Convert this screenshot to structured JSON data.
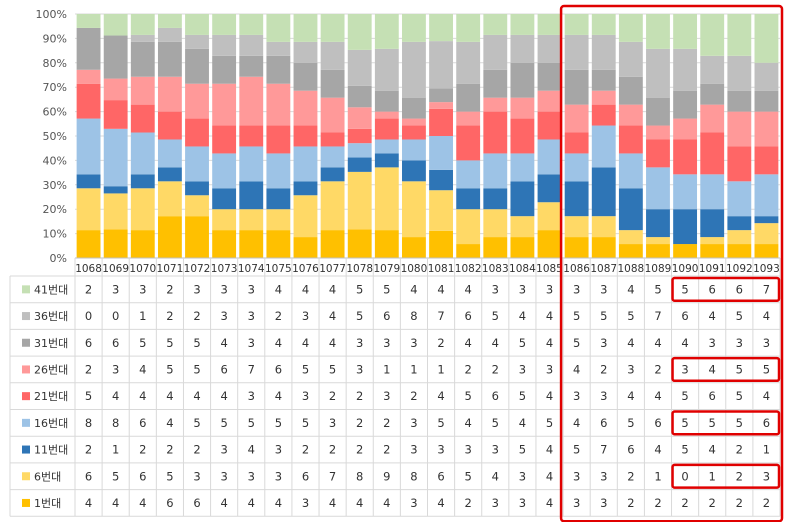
{
  "chart_data": {
    "type": "bar",
    "stacked": "percent",
    "title": "",
    "xlabel": "",
    "ylabel": "",
    "ylim": [
      0,
      100
    ],
    "y_ticks": [
      "0%",
      "10%",
      "20%",
      "30%",
      "40%",
      "50%",
      "60%",
      "70%",
      "80%",
      "90%",
      "100%"
    ],
    "grid": true,
    "legend": "data-table-left",
    "categories": [
      "1068",
      "1069",
      "1070",
      "1071",
      "1072",
      "1073",
      "1074",
      "1075",
      "1076",
      "1077",
      "1078",
      "1079",
      "1080",
      "1081",
      "1082",
      "1083",
      "1084",
      "1085",
      "1086",
      "1087",
      "1088",
      "1089",
      "1090",
      "1091",
      "1092",
      "1093"
    ],
    "series": [
      {
        "name": "1번대",
        "color": "#FFC000",
        "values": [
          4,
          4,
          4,
          6,
          6,
          4,
          4,
          4,
          3,
          4,
          4,
          4,
          3,
          4,
          2,
          3,
          3,
          4,
          3,
          3,
          2,
          2,
          2,
          2,
          2,
          2
        ]
      },
      {
        "name": "6번대",
        "color": "#FFD966",
        "values": [
          6,
          5,
          6,
          5,
          3,
          3,
          3,
          3,
          6,
          7,
          8,
          9,
          8,
          6,
          5,
          4,
          3,
          4,
          3,
          3,
          2,
          1,
          0,
          1,
          2,
          3
        ]
      },
      {
        "name": "11번대",
        "color": "#2E75B6",
        "values": [
          2,
          1,
          2,
          2,
          2,
          3,
          4,
          3,
          2,
          2,
          2,
          2,
          3,
          3,
          3,
          3,
          5,
          4,
          5,
          7,
          6,
          4,
          5,
          4,
          2,
          1
        ]
      },
      {
        "name": "16번대",
        "color": "#9DC3E6",
        "values": [
          8,
          8,
          6,
          4,
          5,
          5,
          5,
          5,
          5,
          3,
          2,
          2,
          3,
          5,
          4,
          5,
          4,
          5,
          4,
          6,
          5,
          6,
          5,
          5,
          5,
          6
        ]
      },
      {
        "name": "21번대",
        "color": "#FF6666",
        "values": [
          5,
          4,
          4,
          4,
          4,
          4,
          3,
          4,
          3,
          2,
          2,
          3,
          2,
          4,
          5,
          6,
          5,
          4,
          3,
          3,
          4,
          4,
          5,
          6,
          5,
          4
        ]
      },
      {
        "name": "26번대",
        "color": "#FF9999",
        "values": [
          2,
          3,
          4,
          5,
          5,
          6,
          7,
          6,
          5,
          5,
          3,
          1,
          1,
          1,
          2,
          2,
          3,
          3,
          4,
          2,
          3,
          2,
          3,
          4,
          5,
          5
        ]
      },
      {
        "name": "31번대",
        "color": "#A6A6A6",
        "values": [
          6,
          6,
          5,
          5,
          5,
          4,
          3,
          4,
          4,
          4,
          3,
          3,
          3,
          2,
          4,
          4,
          5,
          4,
          5,
          3,
          4,
          4,
          4,
          3,
          3,
          3
        ]
      },
      {
        "name": "36번대",
        "color": "#BFBFBF",
        "values": [
          0,
          0,
          1,
          2,
          2,
          3,
          3,
          2,
          3,
          4,
          5,
          6,
          8,
          7,
          6,
          5,
          4,
          4,
          5,
          5,
          5,
          7,
          6,
          4,
          5,
          4
        ]
      },
      {
        "name": "41번대",
        "color": "#C5E0B4",
        "values": [
          2,
          3,
          3,
          2,
          3,
          3,
          3,
          4,
          4,
          4,
          5,
          5,
          4,
          4,
          4,
          3,
          3,
          3,
          3,
          3,
          4,
          5,
          5,
          6,
          6,
          7
        ]
      }
    ],
    "annotations": [
      {
        "type": "highlight-box",
        "from": "1086",
        "to": "1093",
        "series": "all"
      },
      {
        "type": "highlight-box",
        "from": "1090",
        "to": "1093",
        "series": "41번대"
      },
      {
        "type": "highlight-box",
        "from": "1090",
        "to": "1093",
        "series": "26번대"
      },
      {
        "type": "highlight-box",
        "from": "1090",
        "to": "1093",
        "series": "16번대"
      },
      {
        "type": "highlight-box",
        "from": "1090",
        "to": "1093",
        "series": "6번대"
      }
    ],
    "highlight_color": "#E00000"
  }
}
